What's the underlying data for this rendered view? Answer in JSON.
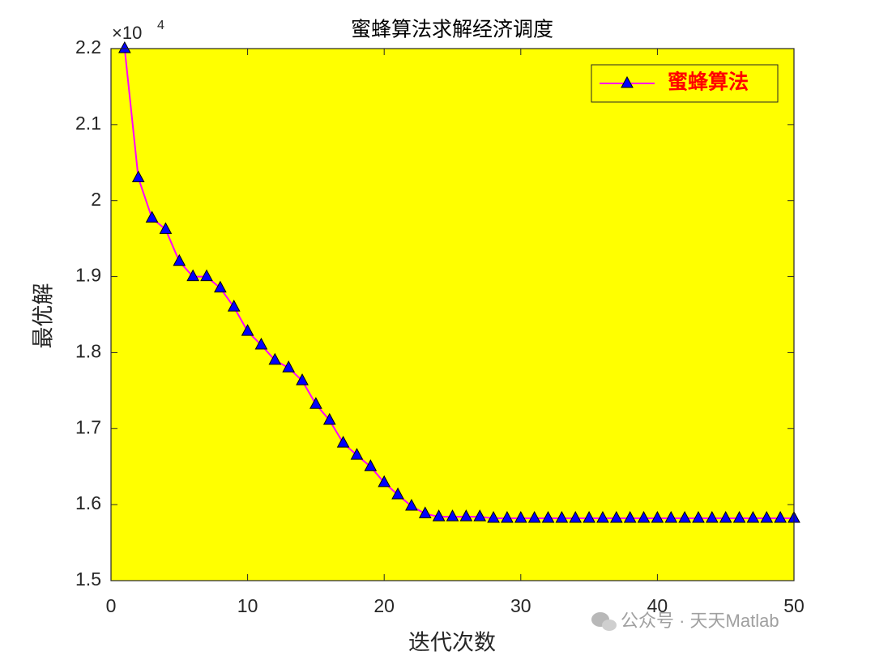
{
  "chart_data": {
    "type": "line",
    "title": "蜜蜂算法求解经济调度",
    "xlabel": "迭代次数",
    "ylabel": "最优解",
    "y_multiplier_base": "×10",
    "y_multiplier_exponent": "4",
    "x": [
      1,
      2,
      3,
      4,
      5,
      6,
      7,
      8,
      9,
      10,
      11,
      12,
      13,
      14,
      15,
      16,
      17,
      18,
      19,
      20,
      21,
      22,
      23,
      24,
      25,
      26,
      27,
      28,
      29,
      30,
      31,
      32,
      33,
      34,
      35,
      36,
      37,
      38,
      39,
      40,
      41,
      42,
      43,
      44,
      45,
      46,
      47,
      48,
      49,
      50
    ],
    "series": [
      {
        "name": "蜜蜂算法",
        "color": "#ff00ff",
        "marker_color": "#0000ff",
        "values": [
          2.2,
          2.03,
          1.977,
          1.962,
          1.92,
          1.9,
          1.9,
          1.885,
          1.86,
          1.828,
          1.81,
          1.79,
          1.78,
          1.763,
          1.732,
          1.711,
          1.681,
          1.665,
          1.65,
          1.629,
          1.613,
          1.598,
          1.588,
          1.584,
          1.584,
          1.584,
          1.584,
          1.582,
          1.582,
          1.582,
          1.582,
          1.582,
          1.582,
          1.582,
          1.582,
          1.582,
          1.582,
          1.582,
          1.582,
          1.582,
          1.582,
          1.582,
          1.582,
          1.582,
          1.582,
          1.582,
          1.582,
          1.582,
          1.582,
          1.582
        ]
      }
    ],
    "xlim": [
      0,
      50
    ],
    "xticks": [
      0,
      10,
      20,
      30,
      40,
      50
    ],
    "ylim": [
      1.5,
      2.2
    ],
    "yticks": [
      1.5,
      1.6,
      1.7,
      1.8,
      1.9,
      2,
      2.1,
      2.2
    ],
    "background": "#ffff00",
    "legend": "upper right"
  },
  "watermark": "公众号 · 天天Matlab"
}
